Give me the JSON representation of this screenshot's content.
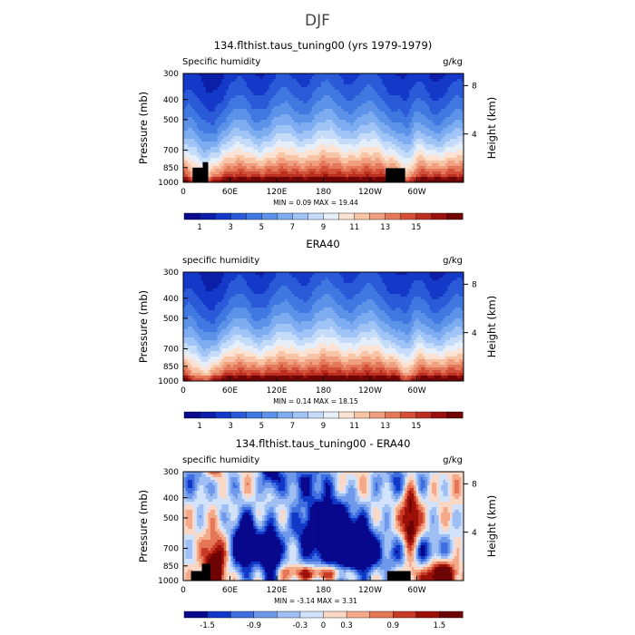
{
  "figure_title": "DJF",
  "colors": {
    "seq": [
      "#08088c",
      "#0c1ea8",
      "#1438c8",
      "#2a5ad8",
      "#3f78e0",
      "#5c92e8",
      "#7eacf0",
      "#a0c4f6",
      "#c4dcfa",
      "#e6eefa",
      "#fce2d2",
      "#f8c4a6",
      "#f0a080",
      "#e4785a",
      "#d2503a",
      "#bc2e20",
      "#9a1210",
      "#6e0404"
    ],
    "div": [
      "#08088c",
      "#1038c8",
      "#3e6ee0",
      "#6e98ea",
      "#9ebef4",
      "#d2e2fa",
      "#fbd8c6",
      "#f4aa8a",
      "#e57656",
      "#c83a26",
      "#9c1008",
      "#6e0404"
    ]
  },
  "chart_data": [
    {
      "type": "heatmap",
      "title": "134.flthist.taus_tuning00 (yrs 1979-1979)",
      "left_label": "Specific humidity",
      "units": "g/kg",
      "ylabel": "Pressure (mb)",
      "ylabel_right": "Height (km)",
      "x_ticks": [
        "0",
        "60E",
        "120E",
        "180",
        "120W",
        "60W"
      ],
      "y_ticks": [
        "300",
        "400",
        "500",
        "700",
        "850",
        "1000"
      ],
      "right_ticks": [
        "8",
        "4"
      ],
      "stats": "MIN =     0.09   MAX =    19.44",
      "colorbar_ticks": [
        "1",
        "3",
        "5",
        "7",
        "9",
        "11",
        "13",
        "15"
      ],
      "colorbar_levels": [
        0.5,
        1,
        2,
        3,
        4,
        5,
        6,
        7,
        8,
        9,
        10,
        11,
        12,
        13,
        14,
        15,
        16
      ],
      "value_range": [
        0.09,
        19.44
      ]
    },
    {
      "type": "heatmap",
      "title": "ERA40",
      "left_label": "specific humidity",
      "units": "g/kg",
      "ylabel": "Pressure (mb)",
      "ylabel_right": "Height (km)",
      "x_ticks": [
        "0",
        "60E",
        "120E",
        "180",
        "120W",
        "60W"
      ],
      "y_ticks": [
        "300",
        "400",
        "500",
        "700",
        "850",
        "1000"
      ],
      "right_ticks": [
        "8",
        "4"
      ],
      "stats": "MIN =     0.14   MAX =    18.15",
      "colorbar_ticks": [
        "1",
        "3",
        "5",
        "7",
        "9",
        "11",
        "13",
        "15"
      ],
      "colorbar_levels": [
        0.5,
        1,
        2,
        3,
        4,
        5,
        6,
        7,
        8,
        9,
        10,
        11,
        12,
        13,
        14,
        15,
        16
      ],
      "value_range": [
        0.14,
        18.15
      ]
    },
    {
      "type": "heatmap",
      "title": "134.flthist.taus_tuning00 - ERA40",
      "left_label": "specific humidity",
      "units": "g/kg",
      "ylabel": "Pressure (mb)",
      "ylabel_right": "Height (km)",
      "x_ticks": [
        "0",
        "60E",
        "120E",
        "180",
        "120W",
        "60W"
      ],
      "y_ticks": [
        "300",
        "400",
        "500",
        "700",
        "850",
        "1000"
      ],
      "right_ticks": [
        "8",
        "4"
      ],
      "stats": "MIN =   -3.14   MAX =     3.31",
      "colorbar_ticks": [
        "-1.5",
        "-0.9",
        "-0.3",
        "0",
        "0.3",
        "0.9",
        "1.5"
      ],
      "colorbar_levels": [
        -1.8,
        -1.5,
        -1.2,
        -0.9,
        -0.6,
        -0.3,
        0,
        0.3,
        0.6,
        0.9,
        1.2,
        1.5,
        1.8
      ],
      "value_range": [
        -3.14,
        3.31
      ]
    }
  ]
}
